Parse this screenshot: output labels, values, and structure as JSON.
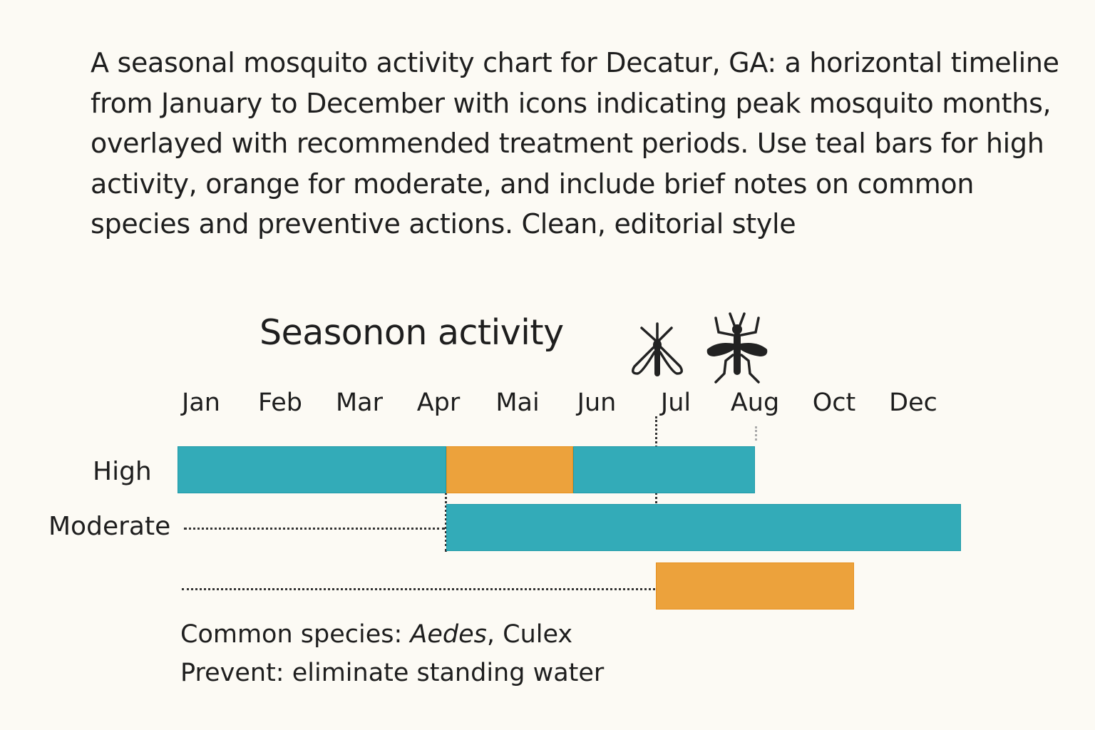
{
  "prompt_text": "A seasonal mosquito activity chart for Decatur, GA: a horizontal timeline from January to December with icons indicating peak mosquito months, overlayed with recommended treatment periods. Use teal bars for high activity, orange for moderate, and include brief notes on common species and preventive actions. Clean, editorial style",
  "icons": [
    "mosquito-outline-icon",
    "mosquito-solid-icon"
  ],
  "colors": {
    "teal": "#33abb8",
    "orange": "#eca23c",
    "background": "#fcfaf4"
  },
  "chart_data": {
    "type": "bar",
    "orientation": "horizontal-timeline",
    "title": "Seasonon activity",
    "x_ticks": [
      "Jan",
      "Feb",
      "Mar",
      "Apr",
      "Mai",
      "Jun",
      "Jul",
      "Aug",
      "Oct",
      "Dec"
    ],
    "x_units": "tick index (0 = Jan)",
    "rows": [
      {
        "label": "High",
        "segments": [
          {
            "start": -0.3,
            "end": 3.1,
            "color": "teal"
          },
          {
            "start": 3.1,
            "end": 4.7,
            "color": "orange"
          },
          {
            "start": 4.7,
            "end": 7.0,
            "color": "teal"
          }
        ]
      },
      {
        "label": "Moderate",
        "segments": [
          {
            "start": 3.1,
            "end": 9.6,
            "color": "teal"
          }
        ]
      },
      {
        "label": "",
        "segments": [
          {
            "start": 5.75,
            "end": 8.25,
            "color": "orange"
          }
        ]
      }
    ],
    "grid": false,
    "legend": "none"
  },
  "notes": {
    "species_prefix": "Common species: ",
    "species_1": "Aedes",
    "species_sep": ", Culex",
    "prevent": "Prevent: eliminate standing water"
  }
}
